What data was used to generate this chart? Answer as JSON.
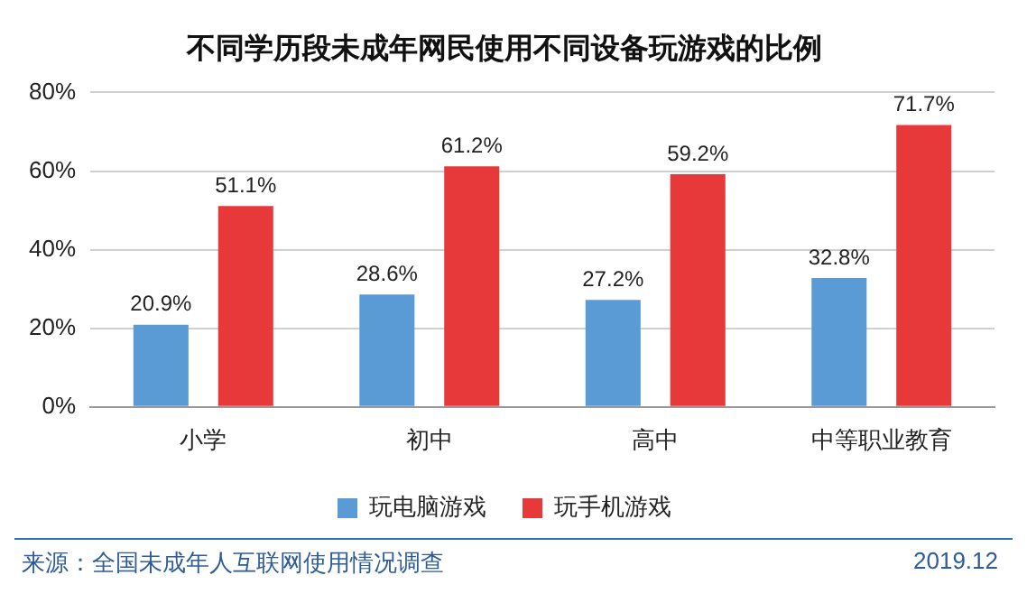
{
  "chart_data": {
    "type": "bar",
    "title": "不同学历段未成年网民使用不同设备玩游戏的比例",
    "categories": [
      "小学",
      "初中",
      "高中",
      "中等职业教育"
    ],
    "series": [
      {
        "name": "玩电脑游戏",
        "color": "#5b9bd5",
        "values": [
          20.9,
          28.6,
          27.2,
          32.8
        ],
        "value_labels": [
          "20.9%",
          "28.6%",
          "27.2%",
          "32.8%"
        ]
      },
      {
        "name": "玩手机游戏",
        "color": "#e8393a",
        "values": [
          51.1,
          61.2,
          59.2,
          71.7
        ],
        "value_labels": [
          "51.1%",
          "61.2%",
          "59.2%",
          "71.7%"
        ]
      }
    ],
    "ylim": [
      0,
      80
    ],
    "yticks": [
      {
        "value": 0,
        "label": "0%"
      },
      {
        "value": 20,
        "label": "20%"
      },
      {
        "value": 40,
        "label": "40%"
      },
      {
        "value": 60,
        "label": "60%"
      },
      {
        "value": 80,
        "label": "80%"
      }
    ],
    "grid": "y",
    "legend": "bottom",
    "annotations": [
      "来源：全国未成年人互联网使用情况调查",
      "2019.12"
    ]
  }
}
